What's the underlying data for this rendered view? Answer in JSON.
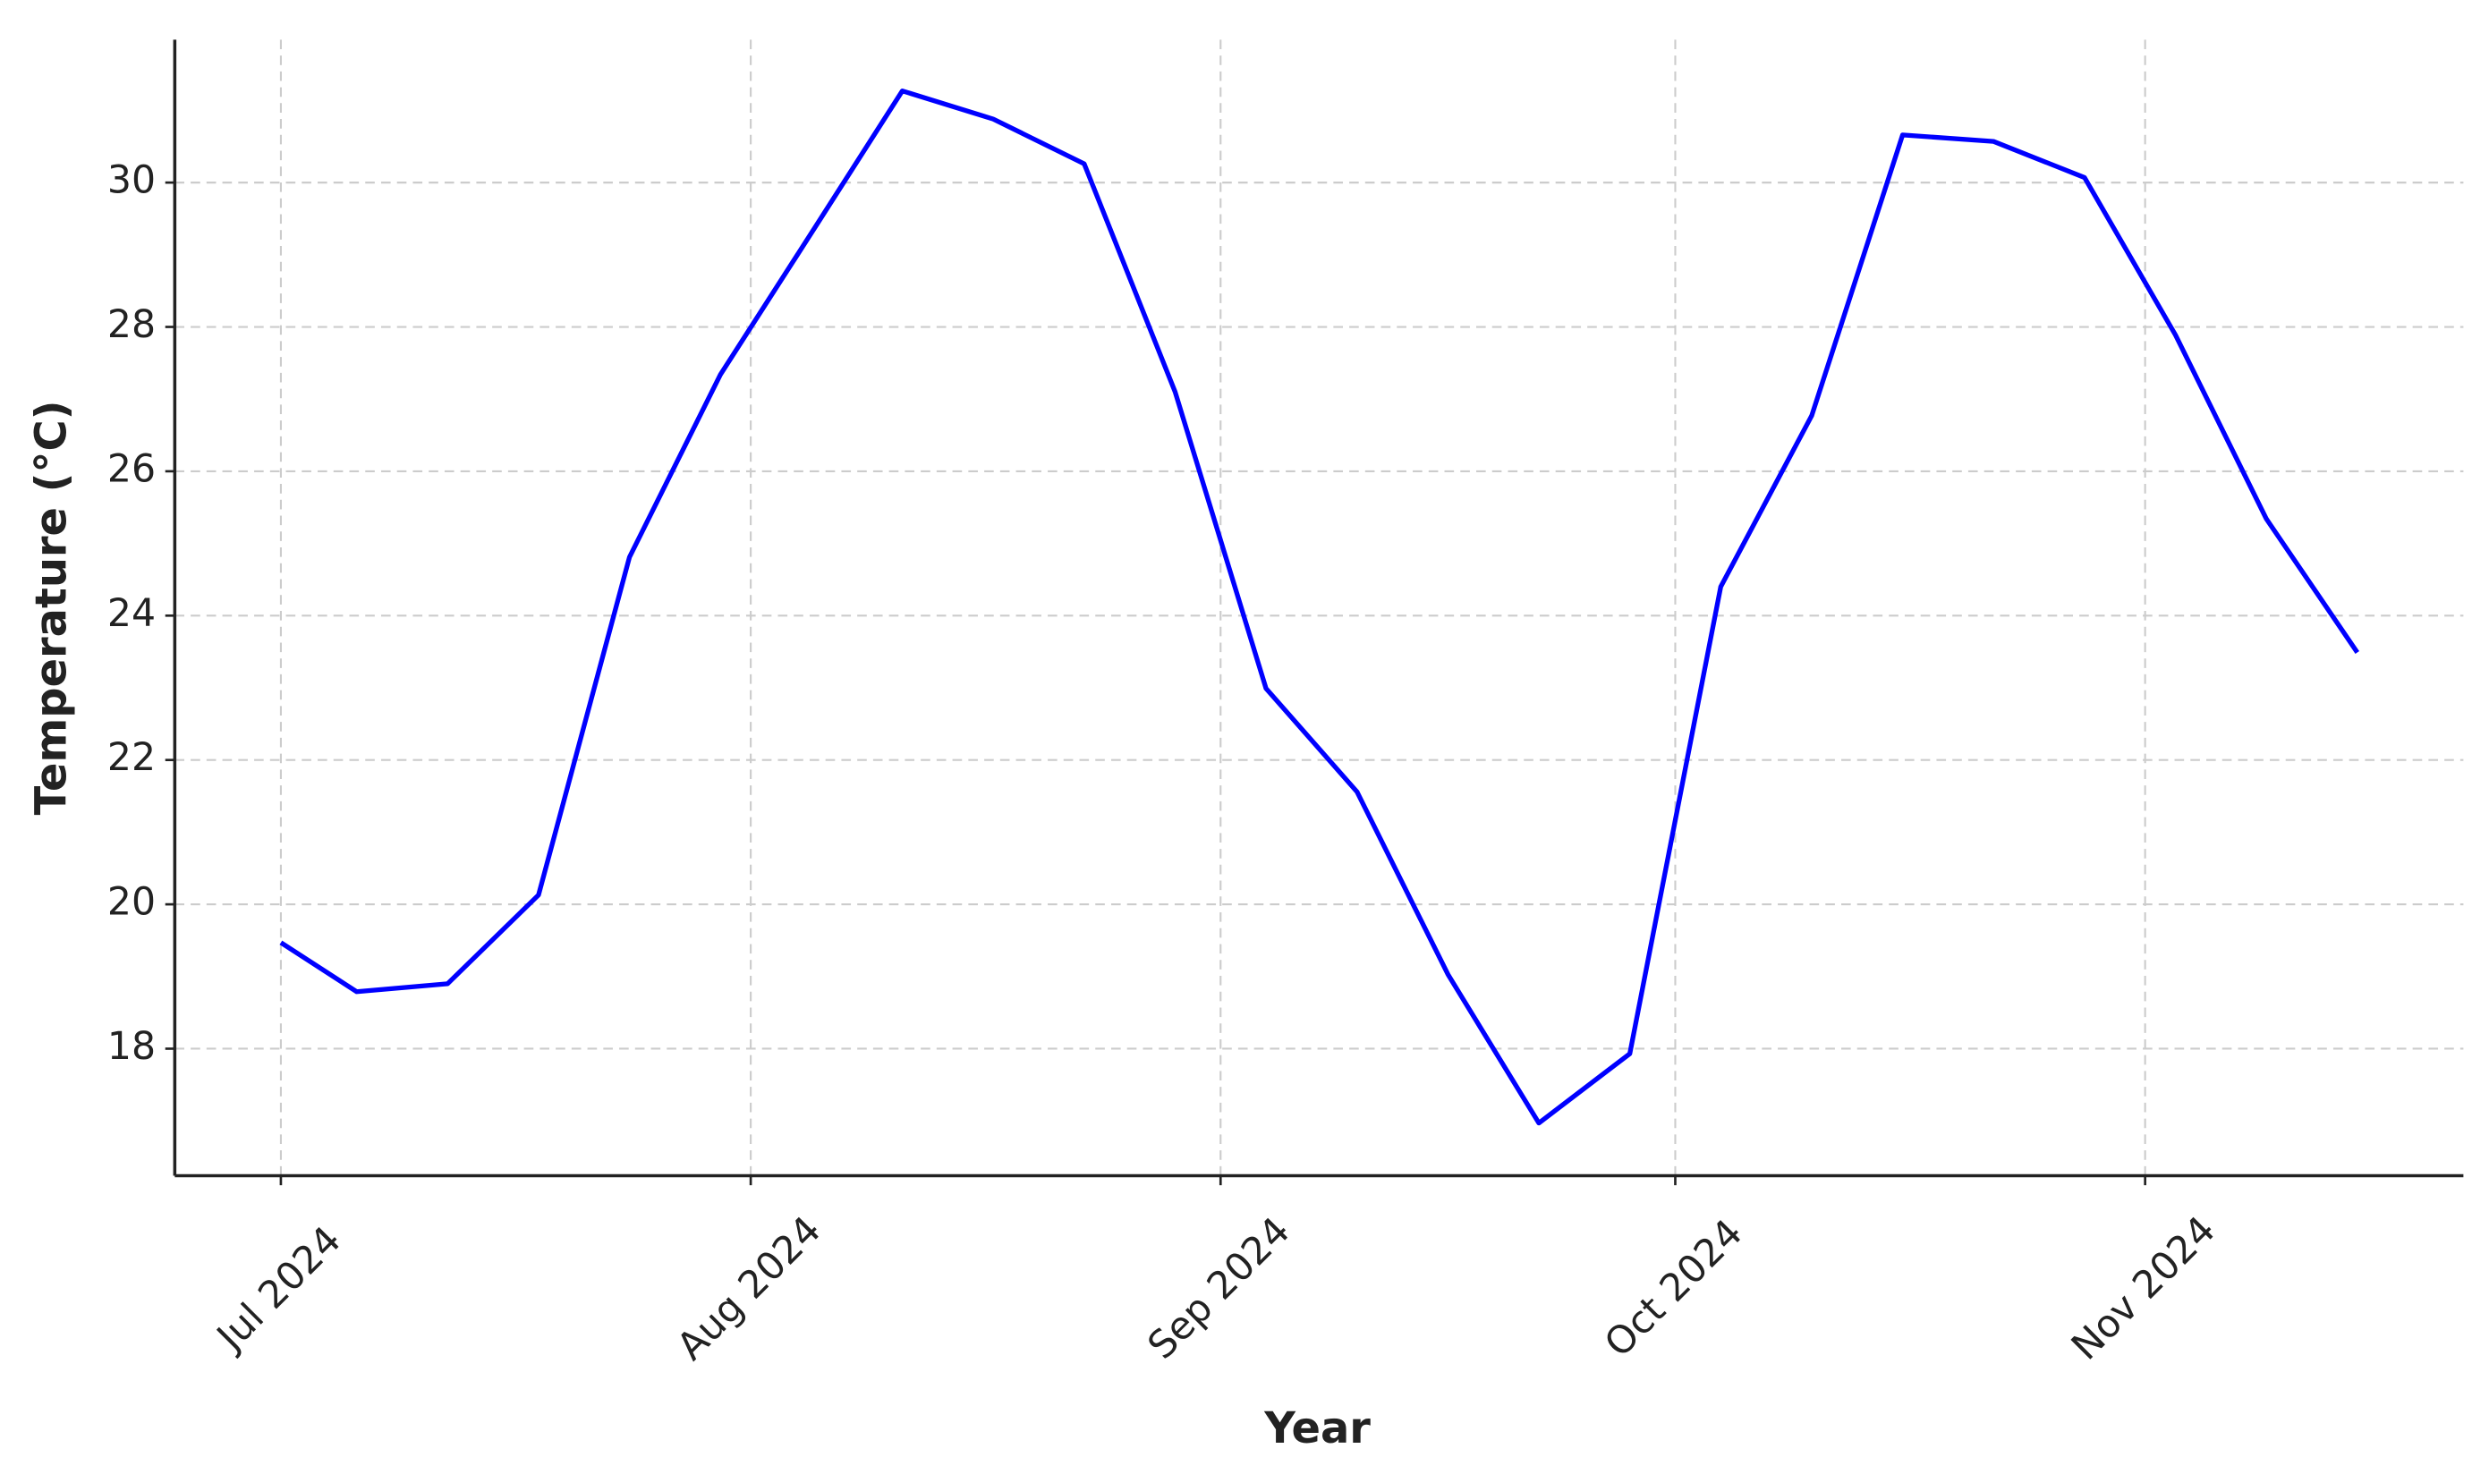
{
  "chart_data": {
    "type": "line",
    "x_label": "Year",
    "y_label": "Temperature (°C)",
    "x": [
      "2024-07-01",
      "2024-07-06",
      "2024-07-12",
      "2024-07-18",
      "2024-07-24",
      "2024-07-30",
      "2024-08-05",
      "2024-08-11",
      "2024-08-17",
      "2024-08-23",
      "2024-08-29",
      "2024-09-04",
      "2024-09-10",
      "2024-09-16",
      "2024-09-22",
      "2024-09-28",
      "2024-10-04",
      "2024-10-10",
      "2024-10-16",
      "2024-10-22",
      "2024-10-28",
      "2024-11-03",
      "2024-11-09",
      "2024-11-15"
    ],
    "series": [
      {
        "color": "#0000ff",
        "values": [
          19.47,
          18.79,
          18.9,
          20.13,
          24.81,
          27.34,
          29.3,
          31.27,
          30.88,
          30.26,
          27.1,
          22.99,
          21.56,
          19.03,
          16.97,
          17.93,
          24.4,
          26.77,
          30.66,
          30.57,
          30.07,
          27.89,
          25.34,
          23.49
        ]
      }
    ],
    "xlim": [
      "2024-06-24",
      "2024-11-22"
    ],
    "xticks": [
      {
        "value": "2024-07-01",
        "label": "Jul 2024"
      },
      {
        "value": "2024-08-01",
        "label": "Aug 2024"
      },
      {
        "value": "2024-09-01",
        "label": "Sep 2024"
      },
      {
        "value": "2024-10-01",
        "label": "Oct 2024"
      },
      {
        "value": "2024-11-01",
        "label": "Nov 2024"
      }
    ],
    "ylim": [
      16.24,
      31.98
    ],
    "yticks": [
      18,
      20,
      22,
      24,
      26,
      28,
      30
    ],
    "grid": true
  }
}
